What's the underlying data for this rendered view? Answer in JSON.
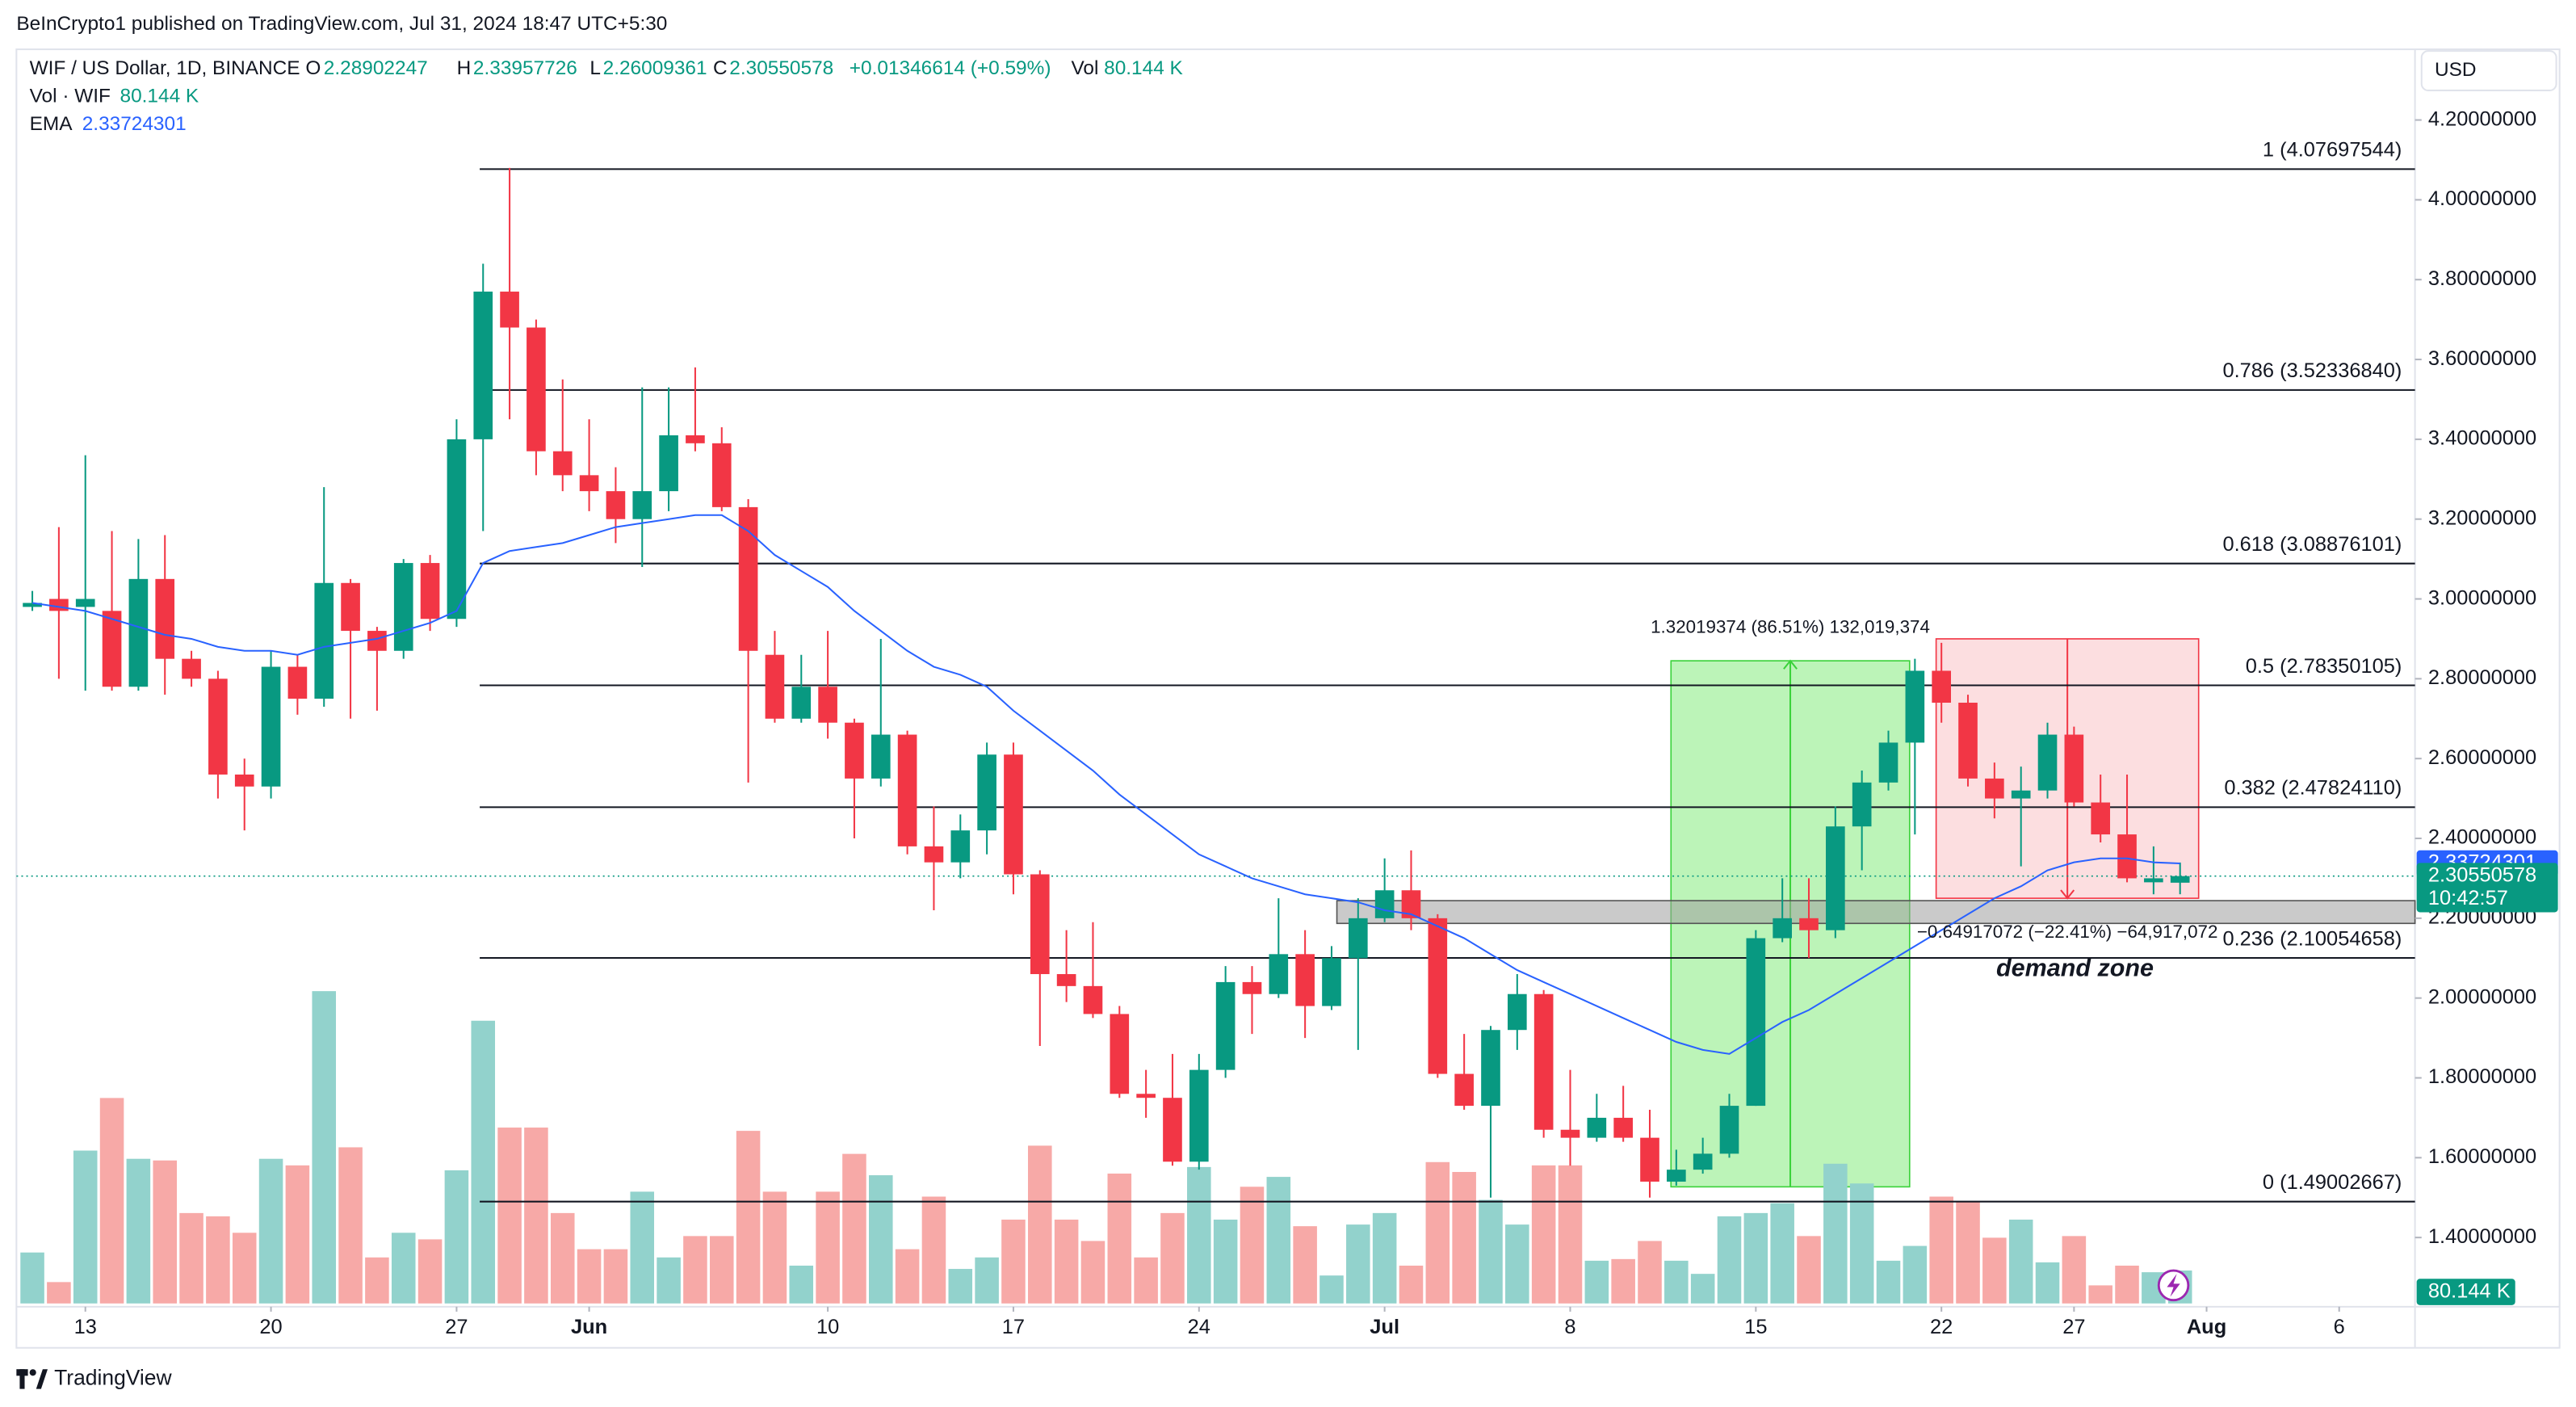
{
  "header": {
    "published": "BeInCrypto1 published on TradingView.com, Jul 31, 2024 18:47 UTC+5:30",
    "symbol": "WIF / US Dollar, 1D, BINANCE",
    "o": "O",
    "h": "H",
    "l": "L",
    "c": "C",
    "change": "+0.01346614 (+0.59%)",
    "vol": "Vol",
    "vol_study": "Vol · WIF",
    "ema_study": "EMA",
    "currency": "USD",
    "countdown": "10:42:57",
    "brand": "TradingView"
  },
  "chart_data": {
    "type": "candlestick",
    "open": [
      2.98,
      3.0,
      2.98,
      2.97,
      2.78,
      3.05,
      2.85,
      2.8,
      2.56,
      2.53,
      2.83,
      2.75,
      3.04,
      2.92,
      2.87,
      3.09,
      2.95,
      3.4,
      3.77,
      3.68,
      3.37,
      3.31,
      3.27,
      3.2,
      3.27,
      3.41,
      3.39,
      3.23,
      2.86,
      2.7,
      2.78,
      2.69,
      2.55,
      2.66,
      2.38,
      2.34,
      2.42,
      2.61,
      2.31,
      2.06,
      2.03,
      1.96,
      1.76,
      1.75,
      1.59,
      1.82,
      2.04,
      2.01,
      2.11,
      1.98,
      2.1,
      2.2,
      2.27,
      2.2,
      1.81,
      1.73,
      1.92,
      2.01,
      1.67,
      1.65,
      1.7,
      1.65,
      1.54,
      1.57,
      1.61,
      1.73,
      2.15,
      2.2,
      2.17,
      2.43,
      2.54,
      2.64,
      2.82,
      2.74,
      2.55,
      2.5,
      2.52,
      2.66,
      2.49,
      2.41,
      2.29,
      2.28902247
    ],
    "high": [
      3.02,
      3.18,
      3.36,
      3.17,
      3.15,
      3.16,
      2.87,
      2.82,
      2.6,
      2.87,
      2.86,
      3.28,
      3.05,
      2.93,
      3.1,
      3.11,
      3.45,
      3.84,
      4.08,
      3.7,
      3.55,
      3.45,
      3.33,
      3.53,
      3.53,
      3.58,
      3.43,
      3.25,
      2.92,
      2.86,
      2.92,
      2.7,
      2.9,
      2.67,
      2.48,
      2.46,
      2.64,
      2.64,
      2.32,
      2.17,
      2.19,
      1.98,
      1.82,
      1.86,
      1.86,
      2.08,
      2.08,
      2.25,
      2.17,
      2.13,
      2.25,
      2.35,
      2.37,
      2.21,
      1.91,
      1.93,
      2.06,
      2.02,
      1.82,
      1.76,
      1.78,
      1.72,
      1.62,
      1.65,
      1.76,
      2.17,
      2.3,
      2.3,
      2.48,
      2.57,
      2.67,
      2.85,
      2.89,
      2.76,
      2.59,
      2.58,
      2.69,
      2.68,
      2.56,
      2.56,
      2.38,
      2.33957726
    ],
    "low": [
      2.97,
      2.8,
      2.77,
      2.77,
      2.77,
      2.76,
      2.78,
      2.5,
      2.42,
      2.5,
      2.71,
      2.73,
      2.7,
      2.72,
      2.85,
      2.92,
      2.93,
      3.17,
      3.45,
      3.31,
      3.27,
      3.22,
      3.14,
      3.08,
      3.22,
      3.37,
      3.22,
      2.54,
      2.69,
      2.69,
      2.65,
      2.4,
      2.53,
      2.36,
      2.22,
      2.3,
      2.36,
      2.26,
      1.88,
      1.99,
      1.95,
      1.75,
      1.7,
      1.58,
      1.57,
      1.8,
      1.91,
      2.0,
      1.9,
      1.97,
      1.87,
      2.19,
      2.17,
      1.8,
      1.72,
      1.5,
      1.87,
      1.65,
      1.58,
      1.64,
      1.64,
      1.5,
      1.53,
      1.56,
      1.6,
      1.73,
      2.14,
      2.1,
      2.15,
      2.32,
      2.52,
      2.41,
      2.69,
      2.53,
      2.45,
      2.33,
      2.5,
      2.48,
      2.39,
      2.29,
      2.26,
      2.26009361
    ],
    "close": [
      2.99,
      2.97,
      3.0,
      2.78,
      3.05,
      2.85,
      2.8,
      2.56,
      2.53,
      2.83,
      2.75,
      3.04,
      2.92,
      2.87,
      3.09,
      2.95,
      3.4,
      3.77,
      3.68,
      3.37,
      3.31,
      3.27,
      3.2,
      3.27,
      3.41,
      3.39,
      3.23,
      2.87,
      2.7,
      2.78,
      2.69,
      2.55,
      2.66,
      2.38,
      2.34,
      2.42,
      2.61,
      2.31,
      2.06,
      2.03,
      1.96,
      1.76,
      1.75,
      1.59,
      1.82,
      2.04,
      2.01,
      2.11,
      1.98,
      2.1,
      2.2,
      2.27,
      2.2,
      1.81,
      1.73,
      1.92,
      2.01,
      1.67,
      1.65,
      1.7,
      1.65,
      1.54,
      1.57,
      1.61,
      1.73,
      2.15,
      2.2,
      2.17,
      2.43,
      2.54,
      2.64,
      2.82,
      2.74,
      2.55,
      2.5,
      2.52,
      2.66,
      2.49,
      2.41,
      2.3,
      2.3,
      2.30550578
    ],
    "volume": [
      124,
      52,
      372,
      500,
      352,
      348,
      220,
      212,
      172,
      352,
      336,
      760,
      380,
      112,
      172,
      156,
      324,
      688,
      428,
      428,
      220,
      132,
      132,
      272,
      112,
      164,
      164,
      420,
      272,
      92,
      272,
      364,
      312,
      132,
      260,
      84,
      112,
      204,
      384,
      204,
      152,
      316,
      112,
      220,
      332,
      204,
      284,
      308,
      188,
      68,
      192,
      220,
      92,
      344,
      320,
      252,
      192,
      336,
      336,
      104,
      108,
      152,
      104,
      72,
      212,
      220,
      244,
      164,
      340,
      292,
      104,
      140,
      260,
      248,
      160,
      204,
      100,
      164,
      44,
      92,
      76,
      80.144
    ],
    "last_volume_label": "80.144 K",
    "up_color": "#089981",
    "down_color": "#f23645",
    "volume_up_color": "#92d2cc",
    "volume_down_color": "#f7a9a7",
    "volume_ylim": [
      0,
      3052
    ],
    "ema": {
      "name": "EMA",
      "color": "#2962ff",
      "values": [
        2.99,
        2.98,
        2.97,
        2.95,
        2.93,
        2.91,
        2.9,
        2.88,
        2.87,
        2.87,
        2.86,
        2.88,
        2.89,
        2.9,
        2.92,
        2.94,
        2.97,
        3.09,
        3.12,
        3.13,
        3.14,
        3.16,
        3.18,
        3.19,
        3.2,
        3.21,
        3.21,
        3.17,
        3.11,
        3.07,
        3.03,
        2.97,
        2.92,
        2.87,
        2.83,
        2.81,
        2.78,
        2.72,
        2.67,
        2.62,
        2.57,
        2.51,
        2.46,
        2.41,
        2.36,
        2.33,
        2.3,
        2.28,
        2.26,
        2.25,
        2.24,
        2.22,
        2.21,
        2.18,
        2.15,
        2.11,
        2.07,
        2.04,
        2.01,
        1.98,
        1.95,
        1.92,
        1.89,
        1.87,
        1.86,
        1.9,
        1.94,
        1.97,
        2.01,
        2.05,
        2.09,
        2.13,
        2.17,
        2.21,
        2.25,
        2.28,
        2.32,
        2.34,
        2.35,
        2.35,
        2.34,
        2.33724301
      ]
    },
    "xlim": [
      -0.6,
      89.86
    ],
    "xticks": [
      {
        "value": 2,
        "label": "13"
      },
      {
        "value": 9,
        "label": "20"
      },
      {
        "value": 16,
        "label": "27"
      },
      {
        "value": 21,
        "label": "Jun"
      },
      {
        "value": 30,
        "label": "10"
      },
      {
        "value": 37,
        "label": "17"
      },
      {
        "value": 44,
        "label": "24"
      },
      {
        "value": 51,
        "label": "Jul"
      },
      {
        "value": 58,
        "label": "8"
      },
      {
        "value": 65,
        "label": "15"
      },
      {
        "value": 72,
        "label": "22"
      },
      {
        "value": 77,
        "label": "27"
      },
      {
        "value": 82,
        "label": "Aug"
      },
      {
        "value": 87,
        "label": "6"
      }
    ],
    "ylim": [
      1.2348,
      4.3771
    ],
    "yticks": [
      {
        "value": 4.2,
        "label": "4.20000000"
      },
      {
        "value": 4.0,
        "label": "4.00000000"
      },
      {
        "value": 3.8,
        "label": "3.80000000"
      },
      {
        "value": 3.6,
        "label": "3.60000000"
      },
      {
        "value": 3.4,
        "label": "3.40000000"
      },
      {
        "value": 3.2,
        "label": "3.20000000"
      },
      {
        "value": 3.0,
        "label": "3.00000000"
      },
      {
        "value": 2.8,
        "label": "2.80000000"
      },
      {
        "value": 2.6,
        "label": "2.60000000"
      },
      {
        "value": 2.4,
        "label": "2.40000000"
      },
      {
        "value": 2.2,
        "label": "2.20000000"
      },
      {
        "value": 2.0,
        "label": "2.00000000"
      },
      {
        "value": 1.8,
        "label": "1.80000000"
      },
      {
        "value": 1.6,
        "label": "1.60000000"
      },
      {
        "value": 1.4,
        "label": "1.40000000"
      }
    ],
    "fib_levels": [
      {
        "price": 4.07697544,
        "label": "1 (4.07697544)"
      },
      {
        "price": 3.5233684,
        "label": "0.786 (3.52336840)"
      },
      {
        "price": 3.08876101,
        "label": "0.618 (3.08876101)"
      },
      {
        "price": 2.78350105,
        "label": "0.5 (2.78350105)"
      },
      {
        "price": 2.4782411,
        "label": "0.382 (2.47824110)"
      },
      {
        "price": 2.10054658,
        "label": "0.236 (2.10054658)"
      },
      {
        "price": 1.49002667,
        "label": "0 (1.49002667)"
      }
    ],
    "demand_zone": {
      "label": "demand zone",
      "start": 49.2,
      "top": 2.244,
      "bottom": 2.187
    },
    "measures": [
      {
        "start": 61.8,
        "end": 70.8,
        "top": 2.845,
        "bottom": 1.527,
        "color": "#a5f0a0",
        "edge": "#3ad23a",
        "label": "1.32019374 (86.51%) 132,019,374",
        "dir": "up"
      },
      {
        "start": 71.8,
        "end": 81.7,
        "top": 2.9,
        "bottom": 2.25,
        "color": "#fbd3d6",
        "edge": "#f23645",
        "label": "−0.64917072 (−22.41%) −64,917,072",
        "dir": "down"
      }
    ]
  }
}
